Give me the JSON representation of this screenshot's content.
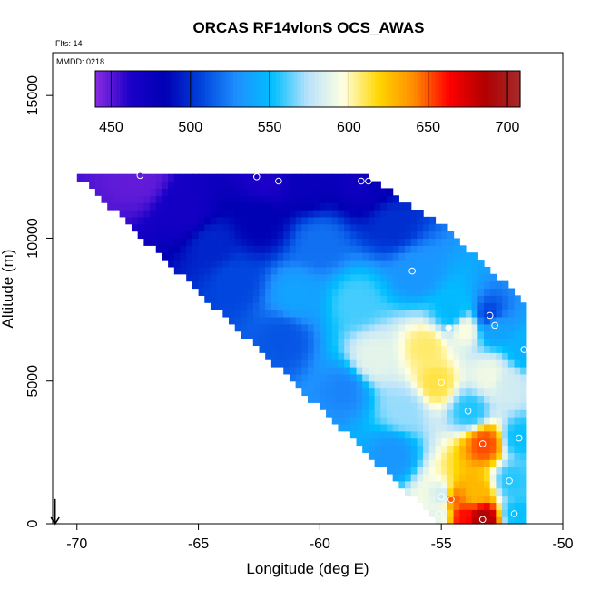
{
  "chart_data": {
    "type": "heatmap",
    "title": "ORCAS RF14vlonS OCS_AWAS",
    "flights_label": "Flts: 14",
    "date_label": "MMDD: 0218",
    "xlabel": "Longitude (deg E)",
    "ylabel": "Altitude (m)",
    "xlim": [
      -71,
      -50
    ],
    "ylim": [
      0,
      16500
    ],
    "x_ticks": [
      -70,
      -65,
      -60,
      -55,
      -50
    ],
    "x_tick_labels": [
      "-70",
      "-65",
      "-60",
      "-55",
      "-50"
    ],
    "y_ticks": [
      0,
      5000,
      10000,
      15000
    ],
    "y_tick_labels": [
      "0",
      "5000",
      "10000",
      "15000"
    ],
    "colorbar": {
      "min": 440,
      "max": 708,
      "ticks": [
        450,
        500,
        550,
        600,
        650,
        700
      ],
      "tick_labels": [
        "450",
        "500",
        "550",
        "600",
        "650",
        "700"
      ],
      "colors": [
        "#8a2be2",
        "#1a00c8",
        "#0000b4",
        "#0044dd",
        "#1e90ff",
        "#00bfff",
        "#b8e2fb",
        "#ffffe0",
        "#ffd700",
        "#ff8c00",
        "#ff0000",
        "#b00000",
        "#a52a2a"
      ]
    },
    "field_control_points": [
      {
        "lon": -67.5,
        "alt": 12200,
        "value": 448
      },
      {
        "lon": -62.2,
        "alt": 12150,
        "value": 462
      },
      {
        "lon": -60.5,
        "alt": 12000,
        "value": 478
      },
      {
        "lon": -58.2,
        "alt": 12000,
        "value": 470
      },
      {
        "lon": -57.9,
        "alt": 12000,
        "value": 482
      },
      {
        "lon": -57.0,
        "alt": 10500,
        "value": 500
      },
      {
        "lon": -56.0,
        "alt": 8800,
        "value": 532
      },
      {
        "lon": -54.5,
        "alt": 7400,
        "value": 548
      },
      {
        "lon": -53.0,
        "alt": 7300,
        "value": 505
      },
      {
        "lon": -52.8,
        "alt": 6950,
        "value": 540
      },
      {
        "lon": -51.6,
        "alt": 6100,
        "value": 545
      },
      {
        "lon": -55.6,
        "alt": 6200,
        "value": 608
      },
      {
        "lon": -54.0,
        "alt": 6850,
        "value": 596
      },
      {
        "lon": -55.2,
        "alt": 4950,
        "value": 612
      },
      {
        "lon": -53.0,
        "alt": 5200,
        "value": 592
      },
      {
        "lon": -52.3,
        "alt": 4900,
        "value": 582
      },
      {
        "lon": -53.8,
        "alt": 3950,
        "value": 555
      },
      {
        "lon": -53.2,
        "alt": 2800,
        "value": 652
      },
      {
        "lon": -51.8,
        "alt": 3000,
        "value": 552
      },
      {
        "lon": -52.1,
        "alt": 1500,
        "value": 556
      },
      {
        "lon": -54.9,
        "alt": 1000,
        "value": 578
      },
      {
        "lon": -54.5,
        "alt": 900,
        "value": 650
      },
      {
        "lon": -53.6,
        "alt": 1100,
        "value": 628
      },
      {
        "lon": -55.1,
        "alt": 350,
        "value": 588
      },
      {
        "lon": -54.1,
        "alt": 250,
        "value": 662
      },
      {
        "lon": -53.3,
        "alt": 150,
        "value": 692
      },
      {
        "lon": -51.9,
        "alt": 350,
        "value": 552
      },
      {
        "lon": -58.5,
        "alt": 7800,
        "value": 560
      },
      {
        "lon": -61.0,
        "alt": 8000,
        "value": 538
      },
      {
        "lon": -60.0,
        "alt": 9800,
        "value": 520
      },
      {
        "lon": -63.5,
        "alt": 8500,
        "value": 508
      },
      {
        "lon": -62.5,
        "alt": 10600,
        "value": 485
      },
      {
        "lon": -65.5,
        "alt": 10900,
        "value": 468
      },
      {
        "lon": -64.5,
        "alt": 9800,
        "value": 497
      },
      {
        "lon": -61.5,
        "alt": 6500,
        "value": 512
      },
      {
        "lon": -59.0,
        "alt": 4700,
        "value": 526
      },
      {
        "lon": -57.0,
        "alt": 2400,
        "value": 532
      },
      {
        "lon": -57.8,
        "alt": 5800,
        "value": 588
      },
      {
        "lon": -56.5,
        "alt": 4000,
        "value": 570
      }
    ],
    "sample_points": [
      {
        "lon": -67.4,
        "alt": 12200,
        "value": 448
      },
      {
        "lon": -62.6,
        "alt": 12150,
        "value": 462
      },
      {
        "lon": -61.7,
        "alt": 12000,
        "value": 478
      },
      {
        "lon": -58.3,
        "alt": 12000,
        "value": 470
      },
      {
        "lon": -58.0,
        "alt": 12000,
        "value": 482
      },
      {
        "lon": -56.2,
        "alt": 8850,
        "value": 532
      },
      {
        "lon": -53.0,
        "alt": 7300,
        "value": 505
      },
      {
        "lon": -52.8,
        "alt": 6950,
        "value": 540
      },
      {
        "lon": -54.7,
        "alt": 6850,
        "value": 596
      },
      {
        "lon": -51.6,
        "alt": 6100,
        "value": 545
      },
      {
        "lon": -55.0,
        "alt": 4950,
        "value": 612
      },
      {
        "lon": -53.9,
        "alt": 3950,
        "value": 555
      },
      {
        "lon": -53.3,
        "alt": 2800,
        "value": 652
      },
      {
        "lon": -51.8,
        "alt": 3000,
        "value": 552
      },
      {
        "lon": -52.2,
        "alt": 1500,
        "value": 556
      },
      {
        "lon": -55.0,
        "alt": 950,
        "value": 578
      },
      {
        "lon": -54.6,
        "alt": 850,
        "value": 650
      },
      {
        "lon": -55.1,
        "alt": 350,
        "value": 588
      },
      {
        "lon": -53.3,
        "alt": 150,
        "value": 692
      },
      {
        "lon": -52.0,
        "alt": 350,
        "value": 552
      }
    ],
    "lower_edge": {
      "start": [
        -70.0,
        12200
      ],
      "end": [
        -55.2,
        150
      ]
    },
    "right_edge_lon": -51.5,
    "arrow": {
      "lon": -70.9,
      "alt_top": 800,
      "alt_bottom": 0
    }
  }
}
